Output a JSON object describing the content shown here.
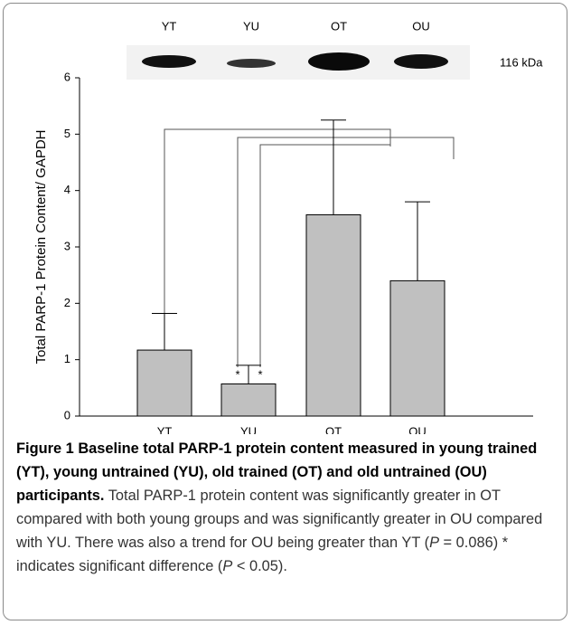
{
  "chart_data": {
    "type": "bar",
    "blot_lanes": [
      "YT",
      "YU",
      "OT",
      "OU"
    ],
    "blot_marker": "116 kDa",
    "ylabel": "Total PARP-1 Protein Content/ GAPDH",
    "categories": [
      "YT",
      "YU",
      "OT",
      "OU"
    ],
    "values": [
      1.17,
      0.57,
      3.57,
      2.4
    ],
    "errors": [
      0.65,
      0.33,
      1.68,
      1.4
    ],
    "color": "#c0c0c0",
    "ylim": [
      0,
      6
    ],
    "yticks": [
      0,
      1,
      2,
      3,
      4,
      5,
      6
    ],
    "annotations": [
      "*",
      "*",
      "*"
    ]
  },
  "caption": {
    "label": "Figure 1",
    "title": "Baseline total PARP-1 protein content measured in young trained (YT), young untrained (YU), old trained (OT) and old untrained (OU) participants.",
    "body": [
      "Total PARP-1 protein content was significantly greater in OT compared with both young groups and was significantly greater in OU compared with YU. There was also a trend for OU being greater than YT (",
      "P",
      " = 0.086) * indicates significant difference (",
      "P",
      " < 0.05)."
    ]
  }
}
